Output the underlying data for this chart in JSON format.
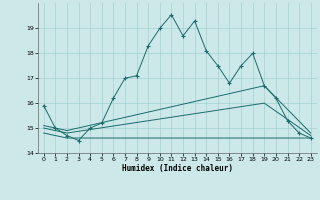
{
  "xlabel": "Humidex (Indice chaleur)",
  "xlim": [
    -0.5,
    23.5
  ],
  "ylim": [
    14,
    20
  ],
  "yticks": [
    14,
    15,
    16,
    17,
    18,
    19
  ],
  "xticks": [
    0,
    1,
    2,
    3,
    4,
    5,
    6,
    7,
    8,
    9,
    10,
    11,
    12,
    13,
    14,
    15,
    16,
    17,
    18,
    19,
    20,
    21,
    22,
    23
  ],
  "bg_color": "#cce8e8",
  "grid_color": "#99cccc",
  "line_color": "#1a6b6b",
  "line1_x": [
    0,
    1,
    2,
    3,
    4,
    5,
    6,
    7,
    8,
    9,
    10,
    11,
    12,
    13,
    14,
    15,
    16,
    17,
    18,
    19,
    20,
    21,
    22,
    23
  ],
  "line1_y": [
    15.9,
    15.0,
    14.7,
    14.5,
    15.0,
    15.2,
    16.2,
    17.0,
    17.1,
    18.3,
    19.0,
    19.55,
    18.7,
    19.3,
    18.1,
    17.5,
    16.8,
    17.5,
    18.0,
    16.7,
    16.2,
    15.3,
    14.8,
    14.6
  ],
  "line2_x": [
    0,
    2,
    23
  ],
  "line2_y": [
    14.8,
    14.6,
    14.6
  ],
  "line3_x": [
    0,
    2,
    19,
    23
  ],
  "line3_y": [
    15.0,
    14.8,
    16.0,
    14.7
  ],
  "line4_x": [
    0,
    2,
    19,
    23
  ],
  "line4_y": [
    15.1,
    14.9,
    16.7,
    14.8
  ],
  "figwidth": 3.2,
  "figheight": 2.0,
  "dpi": 100
}
